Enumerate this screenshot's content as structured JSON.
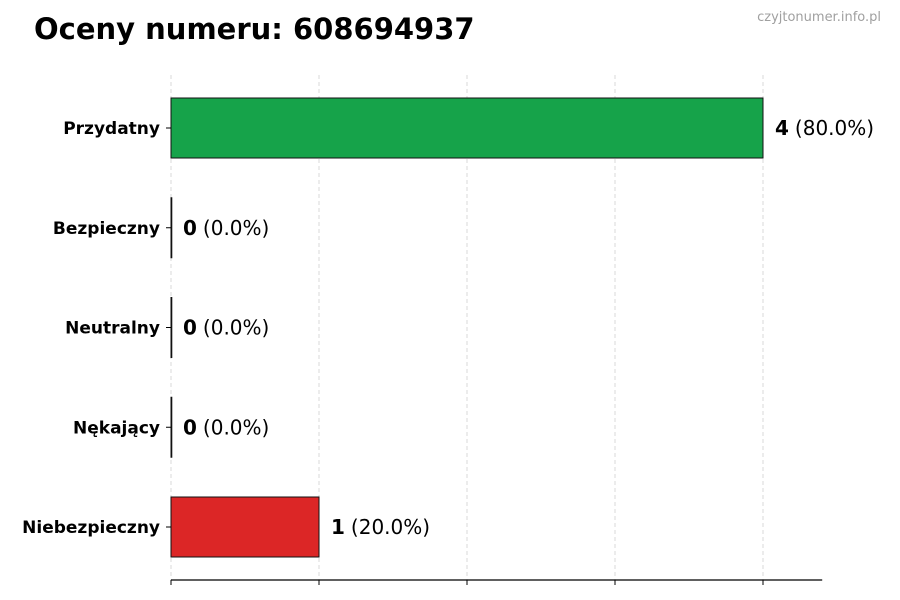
{
  "title": "Oceny numeru: 608694937",
  "watermark": "czyjtonumer.info.pl",
  "chart_data": {
    "type": "bar",
    "orientation": "horizontal",
    "title": "Oceny numeru: 608694937",
    "categories": [
      "Przydatny",
      "Bezpieczny",
      "Neutralny",
      "Nękający",
      "Niebezpieczny"
    ],
    "values": [
      4,
      0,
      0,
      0,
      1
    ],
    "percentages": [
      "80.0%",
      "0.0%",
      "0.0%",
      "0.0%",
      "20.0%"
    ],
    "data_labels": [
      {
        "count": "4",
        "pct": "(80.0%)"
      },
      {
        "count": "0",
        "pct": "(0.0%)"
      },
      {
        "count": "0",
        "pct": "(0.0%)"
      },
      {
        "count": "0",
        "pct": "(0.0%)"
      },
      {
        "count": "1",
        "pct": "(20.0%)"
      }
    ],
    "colors": [
      "#16a34a",
      "#16a34a",
      "#16a34a",
      "#16a34a",
      "#dc2626"
    ],
    "xlim": [
      0,
      4.4
    ],
    "xticks": [
      0,
      1,
      2,
      3,
      4
    ],
    "xtick_labels_shown": false,
    "grid": "x dashed",
    "xlabel": "",
    "ylabel": ""
  }
}
